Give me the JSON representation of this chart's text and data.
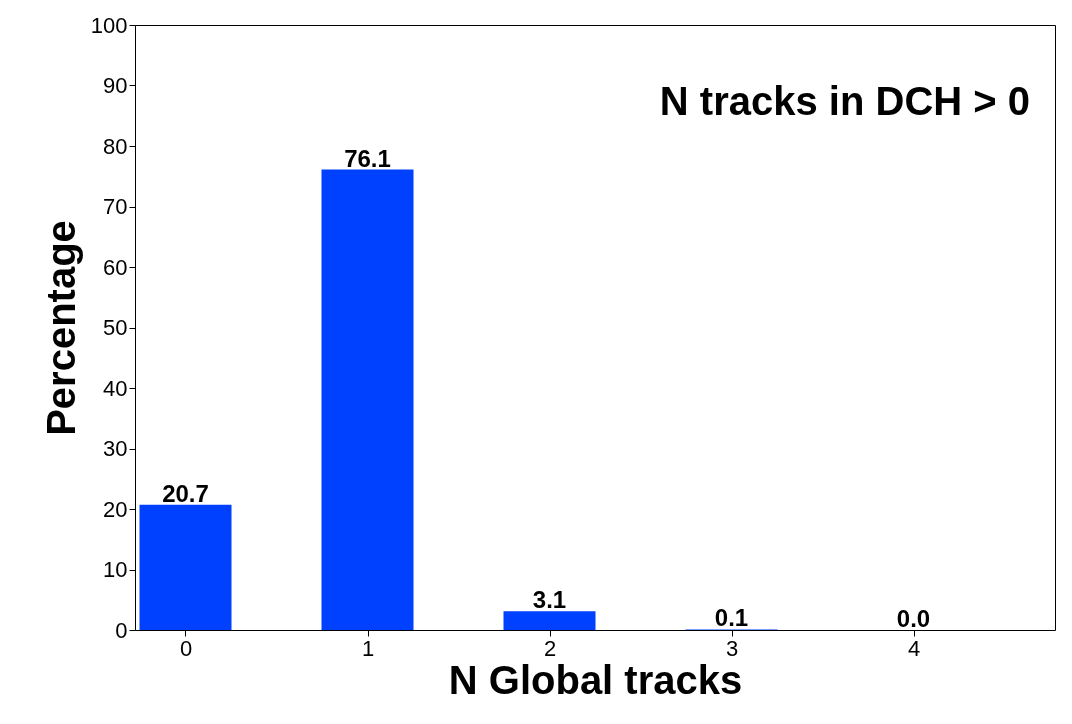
{
  "chart_data": {
    "type": "bar",
    "xlabel": "N Global tracks",
    "ylabel": "Percentage",
    "annotations": [
      "N tracks in DCH > 0"
    ],
    "x": [
      0,
      1,
      2,
      3,
      4
    ],
    "values": [
      20.7,
      76.1,
      3.1,
      0.1,
      0.0
    ],
    "value_labels": [
      "20.7",
      "76.1",
      "3.1",
      "0.1",
      "0.0"
    ],
    "color": "#0040ff",
    "xlim": [
      -0.25,
      4.75
    ],
    "xticks": [
      0,
      1,
      2,
      3,
      4
    ],
    "ylim": [
      0,
      100
    ],
    "yticks": [
      0,
      10,
      20,
      30,
      40,
      50,
      60,
      70,
      80,
      90,
      100
    ],
    "grid": false
  }
}
